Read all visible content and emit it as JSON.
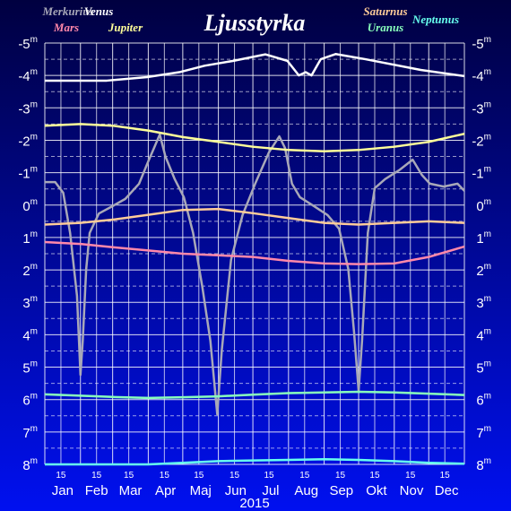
{
  "chart_data": {
    "type": "line",
    "title": "Ljusstyrka",
    "x_label": "2015",
    "ytick_unit": "m",
    "categories": [
      "Jan",
      "Feb",
      "Mar",
      "Apr",
      "Maj",
      "Jun",
      "Jul",
      "Aug",
      "Sep",
      "Okt",
      "Nov",
      "Dec"
    ],
    "xlim": [
      1,
      366
    ],
    "xgrid": [
      1,
      32,
      60,
      91,
      121,
      152,
      182,
      213,
      244,
      274,
      305,
      335,
      366
    ],
    "xticks": [
      {
        "value": 15,
        "label": "15"
      },
      {
        "value": 46,
        "label": "15"
      },
      {
        "value": 74,
        "label": "15"
      },
      {
        "value": 105,
        "label": "15"
      },
      {
        "value": 135,
        "label": "15"
      },
      {
        "value": 166,
        "label": "15"
      },
      {
        "value": 196,
        "label": "15"
      },
      {
        "value": 227,
        "label": "15"
      },
      {
        "value": 258,
        "label": "15"
      },
      {
        "value": 288,
        "label": "15"
      },
      {
        "value": 319,
        "label": "15"
      },
      {
        "value": 349,
        "label": "15"
      }
    ],
    "ylim": [
      8,
      -5
    ],
    "yticks": [
      -5,
      -4,
      -3,
      -2,
      -1,
      0,
      1,
      2,
      3,
      4,
      5,
      6,
      7,
      8
    ],
    "grid": true,
    "series": [
      {
        "name": "Merkurius",
        "color": "#a8a8b8",
        "x": [
          1,
          10,
          17,
          23,
          29,
          32,
          34,
          37,
          40,
          48,
          60,
          71,
          83,
          91,
          96,
          101,
          106,
          114,
          122,
          130,
          138,
          145,
          151,
          155,
          163,
          173,
          184,
          196,
          205,
          210,
          216,
          223,
          235,
          247,
          257,
          265,
          270,
          274,
          277,
          282,
          288,
          297,
          309,
          321,
          329,
          336,
          348,
          360,
          366
        ],
        "values": [
          -0.71,
          -0.71,
          -0.38,
          0.86,
          2.8,
          5.24,
          4.18,
          1.97,
          0.86,
          0.26,
          0.03,
          -0.19,
          -0.66,
          -1.35,
          -1.76,
          -2.18,
          -1.49,
          -0.8,
          -0.24,
          0.86,
          2.52,
          4.18,
          6.45,
          4.46,
          1.69,
          0.31,
          -0.66,
          -1.63,
          -2.12,
          -1.76,
          -0.66,
          -0.24,
          0.03,
          0.31,
          0.73,
          1.97,
          3.91,
          5.73,
          4.18,
          0.86,
          -0.52,
          -0.8,
          -1.07,
          -1.4,
          -0.93,
          -0.66,
          -0.57,
          -0.66,
          -0.44
        ]
      },
      {
        "name": "Venus",
        "color": "#ffffff",
        "x": [
          1,
          30,
          55,
          90,
          118,
          140,
          165,
          193,
          212,
          222,
          228,
          233,
          241,
          254,
          280,
          328,
          366
        ],
        "values": [
          -3.84,
          -3.84,
          -3.84,
          -3.95,
          -4.1,
          -4.3,
          -4.45,
          -4.65,
          -4.45,
          -4.0,
          -4.1,
          -4.0,
          -4.5,
          -4.66,
          -4.5,
          -4.17,
          -3.98
        ]
      },
      {
        "name": "Mars",
        "color": "#ff88aa",
        "x": [
          1,
          32,
          60,
          91,
          121,
          152,
          182,
          213,
          244,
          274,
          305,
          335,
          366
        ],
        "values": [
          1.14,
          1.2,
          1.3,
          1.4,
          1.5,
          1.55,
          1.6,
          1.72,
          1.8,
          1.82,
          1.8,
          1.6,
          1.28
        ]
      },
      {
        "name": "Jupiter",
        "color": "#ffff99",
        "x": [
          1,
          32,
          60,
          91,
          121,
          152,
          182,
          213,
          244,
          274,
          305,
          335,
          366
        ],
        "values": [
          -2.45,
          -2.5,
          -2.45,
          -2.3,
          -2.1,
          -1.95,
          -1.8,
          -1.7,
          -1.66,
          -1.7,
          -1.8,
          -1.95,
          -2.2
        ]
      },
      {
        "name": "Saturnus",
        "color": "#ffcc99",
        "x": [
          1,
          32,
          60,
          91,
          121,
          152,
          182,
          213,
          244,
          274,
          305,
          335,
          366
        ],
        "values": [
          0.6,
          0.55,
          0.45,
          0.3,
          0.15,
          0.12,
          0.25,
          0.4,
          0.55,
          0.6,
          0.55,
          0.5,
          0.55
        ]
      },
      {
        "name": "Uranus",
        "color": "#88ffbb",
        "x": [
          1,
          32,
          60,
          91,
          121,
          152,
          182,
          213,
          244,
          274,
          305,
          335,
          366
        ],
        "values": [
          5.84,
          5.88,
          5.92,
          5.95,
          5.93,
          5.9,
          5.85,
          5.8,
          5.78,
          5.76,
          5.78,
          5.82,
          5.86
        ]
      },
      {
        "name": "Neptunus",
        "color": "#66ffee",
        "x": [
          1,
          32,
          60,
          91,
          121,
          152,
          182,
          213,
          244,
          274,
          305,
          335,
          366
        ],
        "values": [
          8.0,
          8.0,
          8.0,
          8.0,
          7.95,
          7.9,
          7.88,
          7.86,
          7.84,
          7.86,
          7.9,
          7.95,
          7.98
        ]
      }
    ]
  }
}
